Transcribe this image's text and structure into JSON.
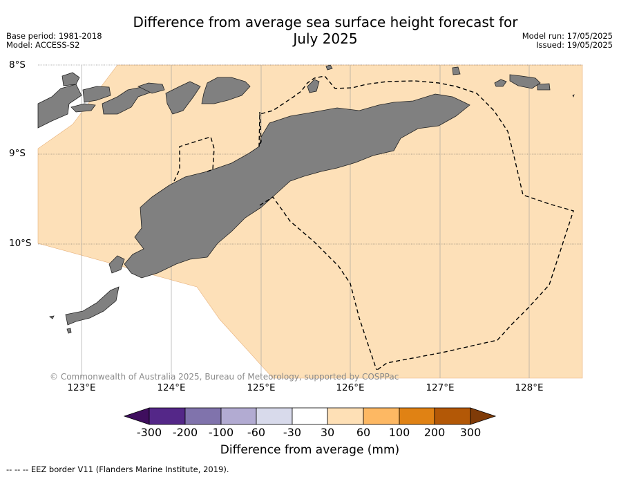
{
  "header": {
    "title_line1": "Difference from average sea surface height forecast for",
    "title_line2": "July 2025",
    "base_period": "Base period: 1981-2018",
    "model": "Model: ACCESS-S2",
    "model_run": "Model run: 17/05/2025",
    "issued": "Issued: 19/05/2025"
  },
  "map": {
    "lat_labels": [
      "8°S",
      "9°S",
      "10°S"
    ],
    "lon_labels": [
      "123°E",
      "124°E",
      "125°E",
      "126°E",
      "127°E",
      "128°E"
    ],
    "lat_range": [
      -11.5,
      -8.0
    ],
    "lon_range": [
      122.5,
      128.6
    ],
    "anomaly_class": "30 to 60 mm",
    "land_color": "#808080",
    "ocean_anomaly_color": "#fde0b8",
    "copyright": "© Commonwealth of Australia 2025, Bureau of Meteorology, supported by COSPPac"
  },
  "colorbar": {
    "ticks": [
      "-300",
      "-200",
      "-100",
      "-60",
      "-30",
      "30",
      "60",
      "100",
      "200",
      "300"
    ],
    "colors": [
      "#3f0e5e",
      "#542788",
      "#8073ac",
      "#b2abd2",
      "#d8daeb",
      "#ffffff",
      "#fee0b6",
      "#fdb863",
      "#e08214",
      "#b35806",
      "#7f3b08"
    ],
    "label": "Difference from average (mm)"
  },
  "legend": {
    "eez_note": "--  --  -- EEZ border V11 (Flanders Marine Institute, 2019)."
  }
}
